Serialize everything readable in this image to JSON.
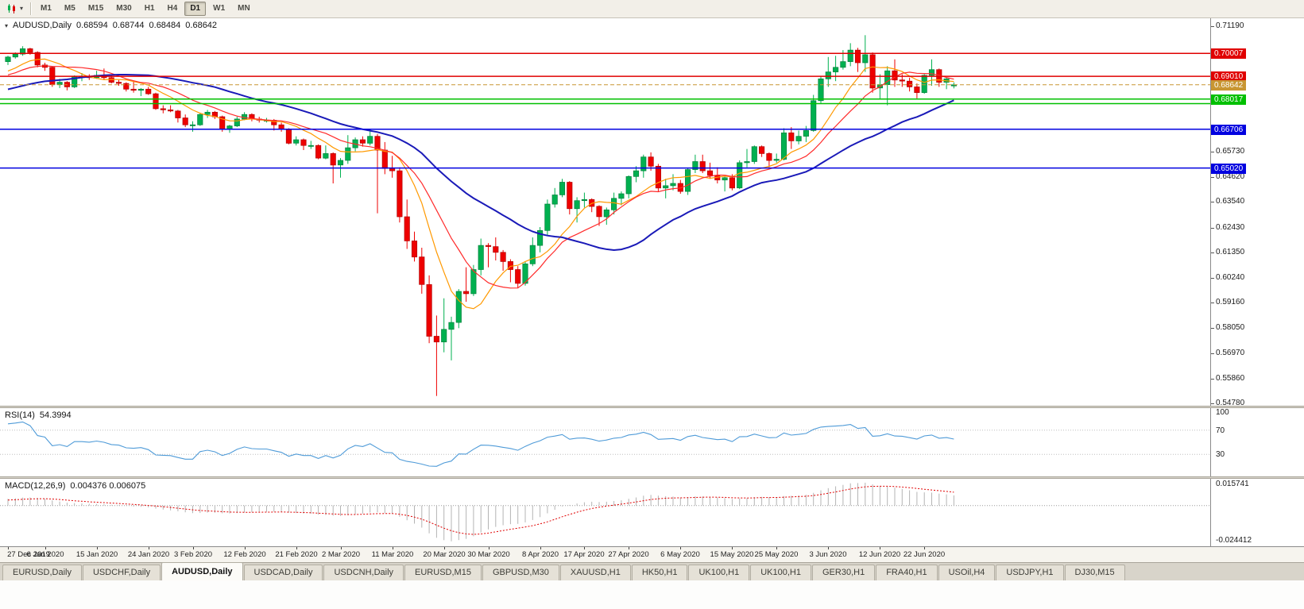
{
  "toolbar": {
    "periods": [
      "M1",
      "M5",
      "M15",
      "M30",
      "H1",
      "H4",
      "D1",
      "W1",
      "MN"
    ],
    "active_period": "D1"
  },
  "main_chart": {
    "legend": {
      "symbol": "AUDUSD,Daily",
      "open": "0.68594",
      "high": "0.68744",
      "low": "0.68484",
      "close": "0.68642"
    },
    "scale": {
      "top_value": 0.7119,
      "bottom_value": 0.5478
    },
    "price_axis_plain_labels": [
      {
        "text": "0.71190",
        "value": 0.7119
      },
      {
        "text": "0.65730",
        "value": 0.6573
      },
      {
        "text": "0.64620",
        "value": 0.6462
      },
      {
        "text": "0.63540",
        "value": 0.6354
      },
      {
        "text": "0.62430",
        "value": 0.6243
      },
      {
        "text": "0.61350",
        "value": 0.6135
      },
      {
        "text": "0.60240",
        "value": 0.6024
      },
      {
        "text": "0.59160",
        "value": 0.5916
      },
      {
        "text": "0.58050",
        "value": 0.5805
      },
      {
        "text": "0.56970",
        "value": 0.5697
      },
      {
        "text": "0.55860",
        "value": 0.5586
      },
      {
        "text": "0.54780",
        "value": 0.5478
      }
    ],
    "levels": [
      {
        "label": "0.70007",
        "value": 0.70007,
        "color": "#E00000",
        "line_style": "solid",
        "labeled": true
      },
      {
        "label": "0.69010",
        "value": 0.6901,
        "color": "#E00000",
        "line_style": "solid",
        "labeled": true
      },
      {
        "label": "0.68642",
        "value": 0.68642,
        "color": "#C89632",
        "line_style": "dashed",
        "labeled": true
      },
      {
        "label": "0.68017",
        "value": 0.68017,
        "color": "#00C000",
        "line_style": "solid",
        "labeled": true
      },
      {
        "label": "",
        "value": 0.6782,
        "color": "#00C000",
        "line_style": "solid",
        "labeled": false
      },
      {
        "label": "0.66706",
        "value": 0.66706,
        "color": "#0000E0",
        "line_style": "solid",
        "labeled": true
      },
      {
        "label": "0.65020",
        "value": 0.6502,
        "color": "#0000E0",
        "line_style": "solid",
        "labeled": true
      }
    ]
  },
  "rsi_panel": {
    "label": "RSI(14)",
    "value": "54.3994",
    "line_color": "#4F9BD8",
    "gridlines": [
      70,
      30
    ],
    "axis_labels": [
      {
        "text": "100",
        "value": 100
      },
      {
        "text": "70",
        "value": 70
      },
      {
        "text": "30",
        "value": 30
      }
    ]
  },
  "macd_panel": {
    "label": "MACD(12,26,9)",
    "values": "0.004376 0.006075",
    "histogram_color": "#B4B4B4",
    "signal_color": "#E00000",
    "axis_labels": [
      {
        "text": "0.015741",
        "value": 0.015741
      },
      {
        "text": "-0.024412",
        "value": -0.024412
      }
    ]
  },
  "time_axis": {
    "labels": [
      {
        "text": "27 Dec 2019",
        "candle_index": 0
      },
      {
        "text": "6 Jan 2020",
        "candle_index": 5
      },
      {
        "text": "15 Jan 2020",
        "candle_index": 12
      },
      {
        "text": "24 Jan 2020",
        "candle_index": 19
      },
      {
        "text": "3 Feb 2020",
        "candle_index": 25
      },
      {
        "text": "12 Feb 2020",
        "candle_index": 32
      },
      {
        "text": "21 Feb 2020",
        "candle_index": 39
      },
      {
        "text": "2 Mar 2020",
        "candle_index": 45
      },
      {
        "text": "11 Mar 2020",
        "candle_index": 52
      },
      {
        "text": "20 Mar 2020",
        "candle_index": 59
      },
      {
        "text": "30 Mar 2020",
        "candle_index": 65
      },
      {
        "text": "8 Apr 2020",
        "candle_index": 72
      },
      {
        "text": "17 Apr 2020",
        "candle_index": 78
      },
      {
        "text": "27 Apr 2020",
        "candle_index": 84
      },
      {
        "text": "6 May 2020",
        "candle_index": 91
      },
      {
        "text": "15 May 2020",
        "candle_index": 98
      },
      {
        "text": "25 May 2020",
        "candle_index": 104
      },
      {
        "text": "3 Jun 2020",
        "candle_index": 111
      },
      {
        "text": "12 Jun 2020",
        "candle_index": 118
      },
      {
        "text": "22 Jun 2020",
        "candle_index": 124
      }
    ]
  },
  "tabs": {
    "items": [
      "EURUSD,Daily",
      "USDCHF,Daily",
      "AUDUSD,Daily",
      "USDCAD,Daily",
      "USDCNH,Daily",
      "EURUSD,M15",
      "GBPUSD,M30",
      "XAUUSD,H1",
      "HK50,H1",
      "UK100,H1",
      "UK100,H1",
      "GER30,H1",
      "FRA40,H1",
      "USOil,H4",
      "USDJPY,H1",
      "DJ30,M15"
    ],
    "active_index": 2
  },
  "chart_data": {
    "type": "candlestick",
    "symbol": "AUDUSD",
    "timeframe": "Daily",
    "up_color": "#00B050",
    "down_color": "#EE0000",
    "moving_averages": [
      {
        "type": "sma",
        "period": 8,
        "color": "#FF9900",
        "width": 1.2
      },
      {
        "type": "sma",
        "period": 13,
        "color": "#FF2A2A",
        "width": 1.2
      },
      {
        "type": "sma",
        "period": 30,
        "color": "#1A1AB8",
        "width": 2
      }
    ],
    "indicators": {
      "rsi_period": 14,
      "rsi_value": 54.3994,
      "macd": [
        12,
        26,
        9
      ],
      "macd_value": 0.004376,
      "macd_signal": 0.006075
    },
    "indicator_warmup_closes": [
      0.676,
      0.677,
      0.6785,
      0.6775,
      0.6765,
      0.677,
      0.678,
      0.679,
      0.6775,
      0.6765,
      0.6775,
      0.679,
      0.6805,
      0.682,
      0.6838,
      0.6828,
      0.6845,
      0.686,
      0.6878,
      0.6856,
      0.6872,
      0.6888,
      0.6905,
      0.6896,
      0.6882,
      0.6892,
      0.6902,
      0.6928,
      0.6948,
      0.696
    ],
    "ohlc": [
      [
        "2019.12.27",
        0.6965,
        0.699,
        0.695,
        0.6985
      ],
      [
        "2019.12.30",
        0.6985,
        0.7005,
        0.6978,
        0.6998
      ],
      [
        "2019.12.31",
        0.6998,
        0.7032,
        0.699,
        0.7021
      ],
      [
        "2020.01.02",
        0.7021,
        0.7025,
        0.6995,
        0.7005
      ],
      [
        "2020.01.03",
        0.7005,
        0.701,
        0.694,
        0.695
      ],
      [
        "2020.01.06",
        0.695,
        0.696,
        0.6925,
        0.694
      ],
      [
        "2020.01.07",
        0.694,
        0.6945,
        0.6855,
        0.6865
      ],
      [
        "2020.01.08",
        0.6865,
        0.689,
        0.685,
        0.6875
      ],
      [
        "2020.01.09",
        0.6875,
        0.688,
        0.684,
        0.6855
      ],
      [
        "2020.01.10",
        0.6855,
        0.6905,
        0.685,
        0.69
      ],
      [
        "2020.01.13",
        0.69,
        0.6915,
        0.688,
        0.69
      ],
      [
        "2020.01.14",
        0.69,
        0.691,
        0.6885,
        0.6895
      ],
      [
        "2020.01.15",
        0.6895,
        0.6925,
        0.689,
        0.6905
      ],
      [
        "2020.01.16",
        0.6905,
        0.6935,
        0.6885,
        0.6895
      ],
      [
        "2020.01.17",
        0.6895,
        0.6905,
        0.687,
        0.6875
      ],
      [
        "2020.01.20",
        0.6875,
        0.6885,
        0.686,
        0.687
      ],
      [
        "2020.01.21",
        0.687,
        0.6875,
        0.6835,
        0.6845
      ],
      [
        "2020.01.22",
        0.6845,
        0.688,
        0.683,
        0.684
      ],
      [
        "2020.01.23",
        0.684,
        0.685,
        0.6815,
        0.6845
      ],
      [
        "2020.01.24",
        0.6845,
        0.6855,
        0.682,
        0.6825
      ],
      [
        "2020.01.27",
        0.6825,
        0.683,
        0.6755,
        0.676
      ],
      [
        "2020.01.28",
        0.676,
        0.6775,
        0.674,
        0.6755
      ],
      [
        "2020.01.29",
        0.6755,
        0.6775,
        0.6745,
        0.675
      ],
      [
        "2020.01.30",
        0.675,
        0.6755,
        0.67,
        0.672
      ],
      [
        "2020.01.31",
        0.672,
        0.6735,
        0.668,
        0.669
      ],
      [
        "2020.02.03",
        0.669,
        0.6705,
        0.666,
        0.669
      ],
      [
        "2020.02.04",
        0.669,
        0.674,
        0.6685,
        0.6735
      ],
      [
        "2020.02.05",
        0.6735,
        0.6755,
        0.672,
        0.6745
      ],
      [
        "2020.02.06",
        0.6745,
        0.675,
        0.6715,
        0.6725
      ],
      [
        "2020.02.07",
        0.6725,
        0.673,
        0.666,
        0.667
      ],
      [
        "2020.02.10",
        0.667,
        0.669,
        0.6655,
        0.6685
      ],
      [
        "2020.02.11",
        0.6685,
        0.6725,
        0.668,
        0.6715
      ],
      [
        "2020.02.12",
        0.6715,
        0.6745,
        0.671,
        0.6735
      ],
      [
        "2020.02.13",
        0.6735,
        0.674,
        0.6705,
        0.6715
      ],
      [
        "2020.02.14",
        0.6715,
        0.6725,
        0.67,
        0.671
      ],
      [
        "2020.02.17",
        0.671,
        0.672,
        0.67,
        0.671
      ],
      [
        "2020.02.18",
        0.671,
        0.6715,
        0.6665,
        0.669
      ],
      [
        "2020.02.19",
        0.669,
        0.67,
        0.666,
        0.667
      ],
      [
        "2020.02.20",
        0.667,
        0.6675,
        0.6605,
        0.661
      ],
      [
        "2020.02.21",
        0.661,
        0.664,
        0.66,
        0.6625
      ],
      [
        "2020.02.24",
        0.6625,
        0.663,
        0.658,
        0.66
      ],
      [
        "2020.02.25",
        0.66,
        0.662,
        0.6585,
        0.66
      ],
      [
        "2020.02.26",
        0.66,
        0.6605,
        0.654,
        0.6545
      ],
      [
        "2020.02.27",
        0.6545,
        0.66,
        0.654,
        0.6565
      ],
      [
        "2020.02.28",
        0.6565,
        0.657,
        0.6435,
        0.6515
      ],
      [
        "2020.03.02",
        0.6515,
        0.6545,
        0.646,
        0.6535
      ],
      [
        "2020.03.03",
        0.6535,
        0.6645,
        0.652,
        0.659
      ],
      [
        "2020.03.04",
        0.659,
        0.6635,
        0.6575,
        0.6625
      ],
      [
        "2020.03.05",
        0.6625,
        0.664,
        0.6595,
        0.661
      ],
      [
        "2020.03.06",
        0.661,
        0.667,
        0.66,
        0.664
      ],
      [
        "2020.03.09",
        0.664,
        0.665,
        0.6305,
        0.658
      ],
      [
        "2020.03.10",
        0.658,
        0.6615,
        0.6475,
        0.65
      ],
      [
        "2020.03.11",
        0.65,
        0.6555,
        0.646,
        0.649
      ],
      [
        "2020.03.12",
        0.649,
        0.6505,
        0.6265,
        0.629
      ],
      [
        "2020.03.13",
        0.629,
        0.6365,
        0.615,
        0.6185
      ],
      [
        "2020.03.16",
        0.6185,
        0.6225,
        0.6095,
        0.6115
      ],
      [
        "2020.03.17",
        0.6115,
        0.6155,
        0.5955,
        0.5995
      ],
      [
        "2020.03.18",
        0.5995,
        0.6035,
        0.574,
        0.577
      ],
      [
        "2020.03.19",
        0.577,
        0.586,
        0.551,
        0.5745
      ],
      [
        "2020.03.20",
        0.5745,
        0.5935,
        0.57,
        0.58
      ],
      [
        "2020.03.23",
        0.58,
        0.5855,
        0.5665,
        0.583
      ],
      [
        "2020.03.24",
        0.583,
        0.5975,
        0.5805,
        0.5965
      ],
      [
        "2020.03.25",
        0.5965,
        0.607,
        0.592,
        0.5955
      ],
      [
        "2020.03.26",
        0.5955,
        0.608,
        0.5945,
        0.606
      ],
      [
        "2020.03.27",
        0.606,
        0.6195,
        0.6035,
        0.6165
      ],
      [
        "2020.03.30",
        0.6165,
        0.6175,
        0.607,
        0.616
      ],
      [
        "2020.03.31",
        0.616,
        0.62,
        0.61,
        0.6135
      ],
      [
        "2020.04.01",
        0.6135,
        0.6145,
        0.6055,
        0.6095
      ],
      [
        "2020.04.02",
        0.6095,
        0.6105,
        0.6005,
        0.606
      ],
      [
        "2020.04.03",
        0.606,
        0.6075,
        0.598,
        0.6
      ],
      [
        "2020.04.06",
        0.6,
        0.6095,
        0.599,
        0.6085
      ],
      [
        "2020.04.07",
        0.6085,
        0.62,
        0.6075,
        0.6165
      ],
      [
        "2020.04.08",
        0.6165,
        0.6245,
        0.6135,
        0.623
      ],
      [
        "2020.04.09",
        0.623,
        0.6365,
        0.621,
        0.6345
      ],
      [
        "2020.04.13",
        0.6345,
        0.6415,
        0.633,
        0.6385
      ],
      [
        "2020.04.14",
        0.6385,
        0.6455,
        0.6375,
        0.644
      ],
      [
        "2020.04.15",
        0.644,
        0.6445,
        0.63,
        0.6325
      ],
      [
        "2020.04.16",
        0.6325,
        0.6375,
        0.6265,
        0.636
      ],
      [
        "2020.04.17",
        0.636,
        0.6395,
        0.633,
        0.6365
      ],
      [
        "2020.04.20",
        0.6365,
        0.637,
        0.631,
        0.6335
      ],
      [
        "2020.04.21",
        0.6335,
        0.634,
        0.625,
        0.629
      ],
      [
        "2020.04.22",
        0.629,
        0.633,
        0.6255,
        0.632
      ],
      [
        "2020.04.23",
        0.632,
        0.6395,
        0.63,
        0.637
      ],
      [
        "2020.04.24",
        0.637,
        0.64,
        0.634,
        0.639
      ],
      [
        "2020.04.27",
        0.639,
        0.647,
        0.637,
        0.6465
      ],
      [
        "2020.04.28",
        0.6465,
        0.651,
        0.644,
        0.649
      ],
      [
        "2020.04.29",
        0.649,
        0.656,
        0.646,
        0.655
      ],
      [
        "2020.04.30",
        0.655,
        0.657,
        0.649,
        0.651
      ],
      [
        "2020.05.01",
        0.651,
        0.652,
        0.64,
        0.6415
      ],
      [
        "2020.05.04",
        0.6415,
        0.6455,
        0.637,
        0.6425
      ],
      [
        "2020.05.05",
        0.6425,
        0.6475,
        0.6405,
        0.6435
      ],
      [
        "2020.05.06",
        0.6435,
        0.645,
        0.639,
        0.64
      ],
      [
        "2020.05.07",
        0.64,
        0.65,
        0.6385,
        0.6495
      ],
      [
        "2020.05.08",
        0.6495,
        0.656,
        0.648,
        0.653
      ],
      [
        "2020.05.11",
        0.653,
        0.656,
        0.648,
        0.649
      ],
      [
        "2020.05.12",
        0.649,
        0.6525,
        0.6455,
        0.647
      ],
      [
        "2020.05.13",
        0.647,
        0.6505,
        0.6435,
        0.645
      ],
      [
        "2020.05.14",
        0.645,
        0.6465,
        0.64,
        0.646
      ],
      [
        "2020.05.15",
        0.646,
        0.6475,
        0.6405,
        0.6415
      ],
      [
        "2020.05.18",
        0.6415,
        0.6535,
        0.641,
        0.6525
      ],
      [
        "2020.05.19",
        0.6525,
        0.6585,
        0.6505,
        0.653
      ],
      [
        "2020.05.20",
        0.653,
        0.66,
        0.652,
        0.6595
      ],
      [
        "2020.05.21",
        0.6595,
        0.66,
        0.655,
        0.6565
      ],
      [
        "2020.05.22",
        0.6565,
        0.657,
        0.6505,
        0.6535
      ],
      [
        "2020.05.25",
        0.6535,
        0.6565,
        0.6525,
        0.654
      ],
      [
        "2020.05.26",
        0.654,
        0.6675,
        0.6535,
        0.6655
      ],
      [
        "2020.05.27",
        0.6655,
        0.668,
        0.6585,
        0.662
      ],
      [
        "2020.05.28",
        0.662,
        0.6665,
        0.6605,
        0.664
      ],
      [
        "2020.05.29",
        0.664,
        0.6685,
        0.6615,
        0.6665
      ],
      [
        "2020.06.01",
        0.6665,
        0.682,
        0.666,
        0.6795
      ],
      [
        "2020.06.02",
        0.6795,
        0.69,
        0.6785,
        0.689
      ],
      [
        "2020.06.03",
        0.689,
        0.6985,
        0.6855,
        0.692
      ],
      [
        "2020.06.04",
        0.692,
        0.699,
        0.688,
        0.694
      ],
      [
        "2020.06.05",
        0.694,
        0.7015,
        0.693,
        0.6965
      ],
      [
        "2020.06.08",
        0.6965,
        0.7045,
        0.6945,
        0.7015
      ],
      [
        "2020.06.09",
        0.7015,
        0.7025,
        0.692,
        0.696
      ],
      [
        "2020.06.10",
        0.696,
        0.708,
        0.692,
        0.6995
      ],
      [
        "2020.06.11",
        0.6995,
        0.7005,
        0.683,
        0.685
      ],
      [
        "2020.06.12",
        0.685,
        0.691,
        0.68,
        0.6865
      ],
      [
        "2020.06.15",
        0.6865,
        0.6945,
        0.6775,
        0.6925
      ],
      [
        "2020.06.16",
        0.6925,
        0.6975,
        0.6855,
        0.6885
      ],
      [
        "2020.06.17",
        0.6885,
        0.691,
        0.6855,
        0.688
      ],
      [
        "2020.06.18",
        0.688,
        0.6895,
        0.6835,
        0.6855
      ],
      [
        "2020.06.19",
        0.6855,
        0.687,
        0.6805,
        0.683
      ],
      [
        "2020.06.22",
        0.683,
        0.691,
        0.6825,
        0.6905
      ],
      [
        "2020.06.23",
        0.6905,
        0.6975,
        0.686,
        0.693
      ],
      [
        "2020.06.24",
        0.693,
        0.6935,
        0.6855,
        0.6875
      ],
      [
        "2020.06.25",
        0.6875,
        0.6895,
        0.6845,
        0.689
      ],
      [
        "2020.06.26",
        0.68594,
        0.68744,
        0.68484,
        0.68642
      ]
    ]
  }
}
